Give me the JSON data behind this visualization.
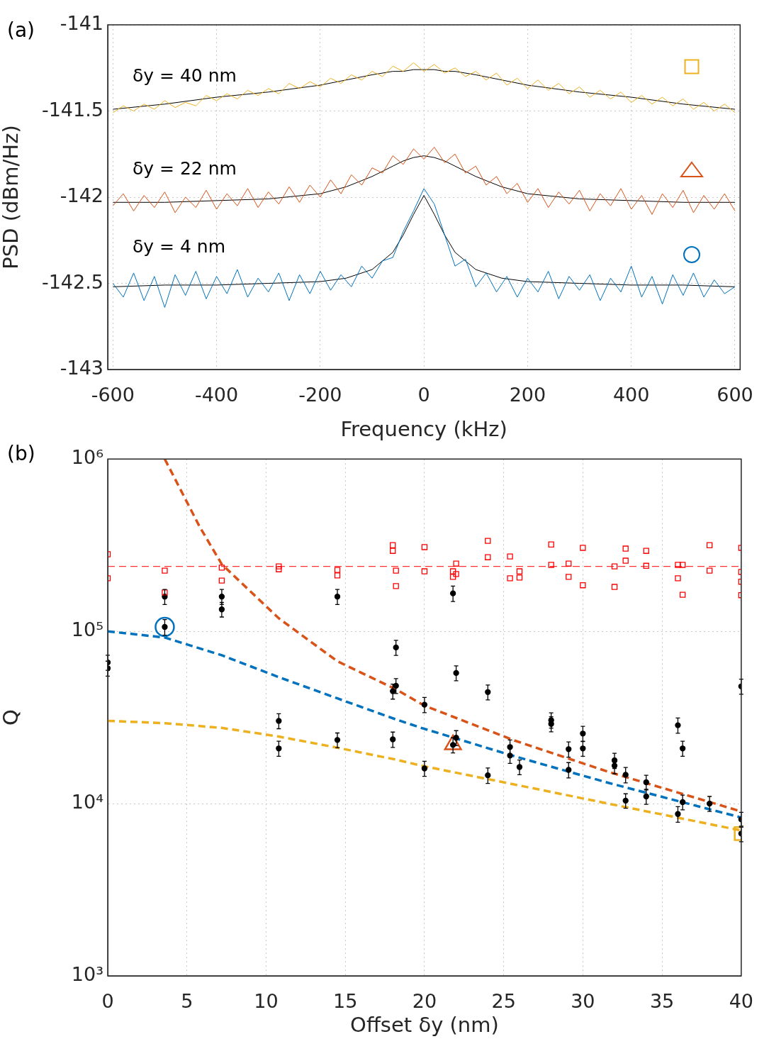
{
  "chart_data": [
    {
      "type": "line",
      "title": "(a)",
      "xlabel": "Frequency (kHz)",
      "ylabel": "PSD (dBm/Hz)",
      "xlim": [
        -610,
        610
      ],
      "xticks": [
        -600,
        -400,
        -200,
        0,
        200,
        400,
        600
      ],
      "ylim": [
        -143,
        -141
      ],
      "yticks": [
        -143,
        -142.5,
        -142,
        -141.5,
        -141
      ],
      "grid": true,
      "legend": false,
      "marker": "none",
      "line_style": "solid",
      "x": [
        -600,
        -580,
        -560,
        -540,
        -520,
        -500,
        -480,
        -460,
        -440,
        -420,
        -400,
        -380,
        -360,
        -340,
        -320,
        -300,
        -280,
        -260,
        -240,
        -220,
        -200,
        -180,
        -160,
        -140,
        -120,
        -100,
        -80,
        -60,
        -40,
        -20,
        0,
        20,
        40,
        60,
        80,
        100,
        120,
        140,
        160,
        180,
        200,
        220,
        240,
        260,
        280,
        300,
        320,
        340,
        360,
        380,
        400,
        420,
        440,
        460,
        480,
        500,
        520,
        540,
        560,
        580,
        600
      ],
      "series": [
        {
          "name": "δy = 40 nm",
          "color": "#edb120",
          "values": [
            -141.51,
            -141.47,
            -141.5,
            -141.46,
            -141.49,
            -141.44,
            -141.48,
            -141.45,
            -141.47,
            -141.41,
            -141.44,
            -141.4,
            -141.43,
            -141.38,
            -141.41,
            -141.37,
            -141.4,
            -141.34,
            -141.37,
            -141.33,
            -141.36,
            -141.31,
            -141.34,
            -141.29,
            -141.32,
            -141.27,
            -141.3,
            -141.24,
            -141.27,
            -141.22,
            -141.27,
            -141.23,
            -141.28,
            -141.25,
            -141.3,
            -141.27,
            -141.32,
            -141.28,
            -141.35,
            -141.31,
            -141.37,
            -141.32,
            -141.38,
            -141.34,
            -141.4,
            -141.36,
            -141.42,
            -141.38,
            -141.43,
            -141.39,
            -141.45,
            -141.41,
            -141.46,
            -141.42,
            -141.47,
            -141.43,
            -141.49,
            -141.45,
            -141.5,
            -141.46,
            -141.51
          ]
        },
        {
          "name": "δy = 22 nm",
          "color": "#d95319",
          "values": [
            -142.05,
            -141.98,
            -142.08,
            -141.99,
            -142.06,
            -141.97,
            -142.09,
            -142,
            -142.06,
            -141.96,
            -142.07,
            -141.98,
            -142.05,
            -141.95,
            -142.06,
            -141.97,
            -142.04,
            -141.94,
            -142.03,
            -141.93,
            -142,
            -141.9,
            -141.98,
            -141.87,
            -141.93,
            -141.83,
            -141.86,
            -141.76,
            -141.81,
            -141.72,
            -141.78,
            -141.71,
            -141.8,
            -141.75,
            -141.86,
            -141.82,
            -141.93,
            -141.88,
            -141.98,
            -141.92,
            -142.03,
            -141.95,
            -142.06,
            -141.97,
            -142.04,
            -141.96,
            -142.08,
            -141.98,
            -142.05,
            -141.95,
            -142.07,
            -141.99,
            -142.1,
            -141.98,
            -142.06,
            -141.96,
            -142.09,
            -141.99,
            -142.07,
            -141.98,
            -142.08
          ]
        },
        {
          "name": "δy = 4 nm",
          "color": "#0072bd",
          "values": [
            -142.5,
            -142.58,
            -142.44,
            -142.6,
            -142.46,
            -142.64,
            -142.45,
            -142.57,
            -142.43,
            -142.59,
            -142.46,
            -142.56,
            -142.42,
            -142.58,
            -142.47,
            -142.55,
            -142.44,
            -142.6,
            -142.45,
            -142.56,
            -142.43,
            -142.54,
            -142.45,
            -142.52,
            -142.4,
            -142.47,
            -142.37,
            -142.35,
            -142.2,
            -142.08,
            -141.95,
            -142.04,
            -142.22,
            -142.4,
            -142.36,
            -142.52,
            -142.44,
            -142.55,
            -142.46,
            -142.58,
            -142.47,
            -142.55,
            -142.43,
            -142.59,
            -142.46,
            -142.54,
            -142.45,
            -142.6,
            -142.47,
            -142.55,
            -142.4,
            -142.58,
            -142.46,
            -142.62,
            -142.45,
            -142.57,
            -142.44,
            -142.58,
            -142.48,
            -142.56,
            -142.52
          ]
        },
        {
          "color": "#000000",
          "x": [
            -600,
            -500,
            -400,
            -300,
            -200,
            -150,
            -100,
            -60,
            -40,
            -20,
            0,
            20,
            40,
            60,
            100,
            150,
            200,
            300,
            400,
            500,
            600
          ],
          "values": [
            -141.49,
            -141.46,
            -141.42,
            -141.39,
            -141.35,
            -141.32,
            -141.29,
            -141.27,
            -141.27,
            -141.26,
            -141.26,
            -141.26,
            -141.27,
            -141.27,
            -141.29,
            -141.32,
            -141.35,
            -141.39,
            -141.42,
            -141.46,
            -141.49
          ]
        },
        {
          "color": "#000000",
          "x": [
            -600,
            -500,
            -400,
            -300,
            -200,
            -150,
            -100,
            -60,
            -40,
            -20,
            0,
            20,
            40,
            60,
            100,
            150,
            200,
            300,
            400,
            500,
            600
          ],
          "values": [
            -142.03,
            -142.03,
            -142.02,
            -142.01,
            -141.98,
            -141.94,
            -141.88,
            -141.82,
            -141.79,
            -141.77,
            -141.76,
            -141.77,
            -141.79,
            -141.82,
            -141.88,
            -141.94,
            -141.98,
            -142.01,
            -142.02,
            -142.03,
            -142.03
          ]
        },
        {
          "color": "#000000",
          "x": [
            -600,
            -500,
            -400,
            -300,
            -200,
            -150,
            -100,
            -60,
            -40,
            -20,
            0,
            20,
            40,
            60,
            100,
            150,
            200,
            300,
            400,
            500,
            600
          ],
          "values": [
            -142.52,
            -142.51,
            -142.51,
            -142.5,
            -142.49,
            -142.47,
            -142.42,
            -142.32,
            -142.22,
            -142.1,
            -141.99,
            -142.1,
            -142.22,
            -142.32,
            -142.42,
            -142.47,
            -142.49,
            -142.5,
            -142.51,
            -142.51,
            -142.52
          ]
        }
      ]
    },
    {
      "type": "scatter",
      "title": "(b)",
      "xlabel": "Offset δy (nm)",
      "ylabel": "Q",
      "xlim": [
        0,
        40
      ],
      "xticks": [
        0,
        5,
        10,
        15,
        20,
        25,
        30,
        35,
        40
      ],
      "ylim": [
        1000,
        1000000
      ],
      "yticks": [
        {
          "value": 1000,
          "label": "10³"
        },
        {
          "value": 10000,
          "label": "10⁴"
        },
        {
          "value": 100000,
          "label": "10⁵"
        },
        {
          "value": 1000000,
          "label": "10⁶"
        }
      ],
      "log": "y",
      "grid": true,
      "legend": false,
      "ref_lines": [
        {
          "axis": "y",
          "value": 238000,
          "color": "#ff3333",
          "line_style": "dashed"
        }
      ],
      "series": [
        {
          "marker": "square",
          "color": "#ff0000",
          "x": [
            0,
            0,
            3.6,
            3.6,
            7.2,
            7.2,
            10.8,
            10.8,
            14.5,
            14.5,
            18,
            18,
            18.2,
            18.2,
            20,
            20,
            21.8,
            21.8,
            22,
            22,
            24,
            24,
            25.4,
            25.4,
            26,
            26,
            28,
            28,
            29.1,
            29.1,
            30,
            30,
            32,
            32,
            32.7,
            32.7,
            34,
            34,
            36,
            36,
            36.3,
            36.3,
            38,
            38,
            40,
            40,
            40,
            40
          ],
          "values": [
            280000,
            203000,
            225000,
            168000,
            234000,
            197000,
            238000,
            229000,
            227000,
            211000,
            316000,
            293000,
            225000,
            183000,
            308000,
            223000,
            223000,
            207000,
            247000,
            215000,
            335000,
            269000,
            272000,
            203000,
            223000,
            205000,
            319000,
            243000,
            247000,
            207000,
            305000,
            185000,
            238000,
            181000,
            302000,
            257000,
            293000,
            240000,
            243000,
            203000,
            243000,
            163000,
            316000,
            225000,
            305000,
            221000,
            194000,
            162000
          ]
        },
        {
          "marker": "circle",
          "color": "#000000",
          "x": [
            0,
            0,
            3.6,
            3.6,
            7.2,
            7.2,
            10.8,
            10.8,
            14.5,
            14.5,
            18,
            18,
            18.2,
            18.2,
            20,
            20,
            21.8,
            21.8,
            22,
            22,
            24,
            24,
            25.4,
            25.4,
            26,
            28,
            28,
            29.1,
            29.1,
            30,
            30,
            32,
            32,
            32.7,
            32.7,
            34,
            34,
            36,
            36,
            36.3,
            36.3,
            38,
            40,
            40,
            40
          ],
          "values": [
            66000,
            61000,
            159000,
            106000,
            159000,
            134000,
            30200,
            20900,
            159000,
            23400,
            23600,
            44900,
            80600,
            48300,
            37500,
            16000,
            166000,
            21900,
            57300,
            24100,
            44400,
            14600,
            21300,
            19000,
            16300,
            30500,
            29000,
            20700,
            15700,
            25500,
            20900,
            17800,
            16600,
            14700,
            10400,
            13300,
            11000,
            28500,
            8700,
            20900,
            10200,
            10000,
            47900,
            8100,
            6700
          ],
          "errors": [
            6600,
            6100,
            16000,
            11000,
            16000,
            13000,
            3000,
            2100,
            16000,
            2300,
            2400,
            4500,
            8100,
            4800,
            3800,
            1600,
            17000,
            2200,
            5700,
            2400,
            4400,
            1500,
            2100,
            1900,
            1600,
            3100,
            2900,
            2100,
            1600,
            2600,
            2100,
            1800,
            1700,
            1500,
            1000,
            1300,
            1100,
            2900,
            900,
            2100,
            1000,
            1000,
            4800,
            800,
            700
          ]
        },
        {
          "type": "line",
          "line_style": "dashed",
          "marker": "none",
          "color": "#d95319",
          "x": [
            3.6,
            5.8,
            7.2,
            10.8,
            14.5,
            18.2,
            20,
            25.7,
            31.6,
            40
          ],
          "values": [
            1000000,
            405000,
            245000,
            119000,
            67000,
            46000,
            37000,
            23200,
            15300,
            9000
          ]
        },
        {
          "type": "line",
          "line_style": "dashed",
          "marker": "none",
          "color": "#0072bd",
          "x": [
            0,
            3.6,
            7.2,
            10.8,
            14.5,
            18.2,
            19.8,
            25.7,
            31.6,
            40
          ],
          "values": [
            100000,
            92000,
            72600,
            54200,
            40800,
            30800,
            27500,
            18800,
            13200,
            8300
          ]
        },
        {
          "type": "line",
          "line_style": "dashed",
          "marker": "none",
          "color": "#edb120",
          "x": [
            0,
            3.6,
            7.2,
            10.8,
            14.5,
            18.2,
            19.8,
            25.7,
            31.6,
            40
          ],
          "values": [
            30200,
            29300,
            27500,
            24500,
            21100,
            18000,
            16600,
            12900,
            10000,
            6980
          ]
        },
        {
          "marker": "circle",
          "color": "#0072bd",
          "x": [
            3.6
          ],
          "values": [
            106000
          ]
        },
        {
          "marker": "triangle",
          "color": "#d95319",
          "x": [
            21.8
          ],
          "values": [
            22000
          ]
        },
        {
          "marker": "square",
          "color": "#edb120",
          "x": [
            40
          ],
          "values": [
            6700
          ]
        }
      ]
    }
  ]
}
